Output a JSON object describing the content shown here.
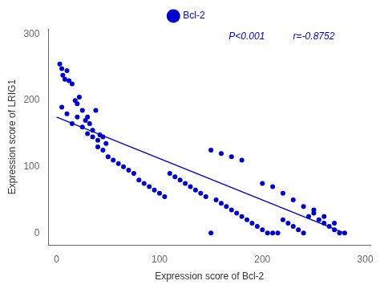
{
  "chart_data": {
    "type": "scatter",
    "xlabel": "Expression score of Bcl-2",
    "ylabel": "Expression score of LRIG1",
    "series": [
      {
        "name": "Bcl-2",
        "type": "scatter",
        "color": "#0000cc",
        "marker": "o",
        "x": [
          3,
          5,
          6,
          8,
          10,
          12,
          15,
          18,
          20,
          22,
          25,
          28,
          30,
          32,
          35,
          38,
          40,
          42,
          45,
          48,
          5,
          10,
          15,
          20,
          25,
          30,
          35,
          40,
          45,
          50,
          55,
          60,
          65,
          70,
          75,
          80,
          85,
          90,
          95,
          100,
          105,
          110,
          115,
          120,
          125,
          130,
          135,
          140,
          145,
          150,
          155,
          160,
          165,
          170,
          175,
          180,
          185,
          190,
          195,
          200,
          205,
          210,
          215,
          220,
          225,
          230,
          235,
          240,
          245,
          250,
          255,
          260,
          265,
          270,
          275,
          280,
          150,
          160,
          170,
          180,
          200,
          210,
          220,
          230,
          240,
          250,
          260,
          270
        ],
        "values": [
          255,
          248,
          238,
          232,
          245,
          230,
          225,
          200,
          195,
          205,
          185,
          170,
          175,
          165,
          155,
          185,
          140,
          148,
          145,
          135,
          190,
          180,
          165,
          175,
          160,
          150,
          145,
          130,
          125,
          115,
          110,
          105,
          100,
          95,
          90,
          80,
          75,
          70,
          65,
          60,
          55,
          90,
          85,
          80,
          75,
          70,
          65,
          60,
          55,
          0,
          50,
          45,
          40,
          35,
          30,
          25,
          20,
          15,
          10,
          5,
          0,
          0,
          0,
          20,
          15,
          10,
          5,
          0,
          25,
          30,
          20,
          15,
          10,
          5,
          0,
          0,
          125,
          120,
          115,
          110,
          75,
          70,
          60,
          50,
          40,
          35,
          25,
          15
        ]
      },
      {
        "type": "line",
        "color": "#0000cc",
        "line_style": "solid",
        "x": [
          0,
          280
        ],
        "values": [
          175,
          0
        ]
      }
    ],
    "annotations": [
      "P<0.001",
      "r=-0.8752"
    ],
    "xlim": [
      -8,
      305
    ],
    "ylim": [
      -18,
      308
    ],
    "xticks": [
      0,
      100,
      200,
      300
    ],
    "yticks": [
      0,
      100,
      200,
      300
    ],
    "grid": false,
    "legend": "top"
  }
}
